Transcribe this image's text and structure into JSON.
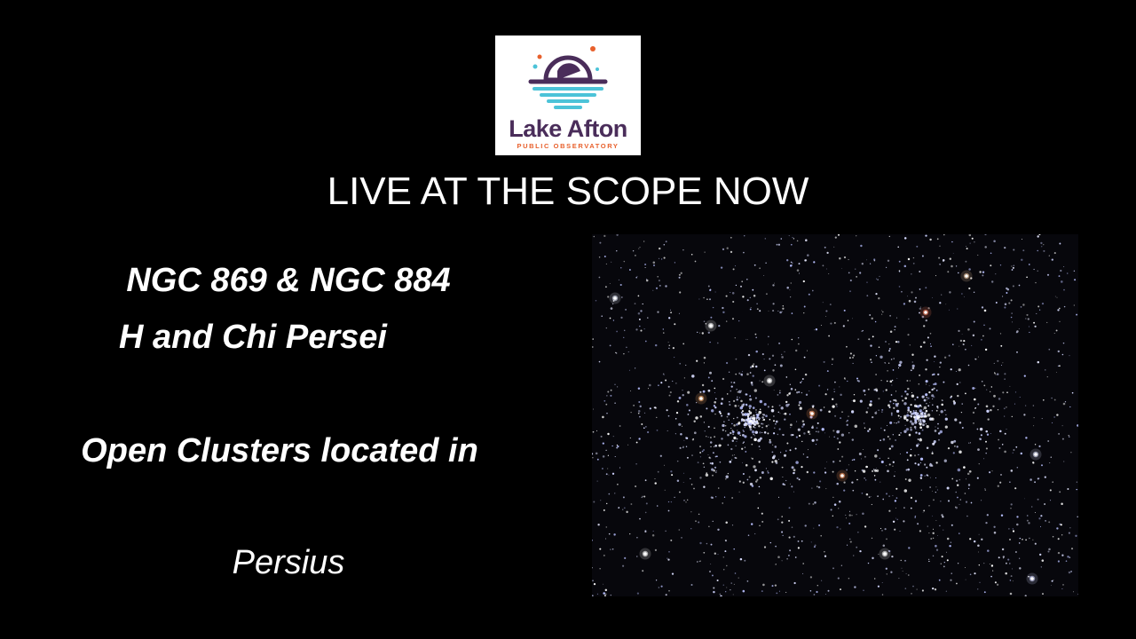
{
  "logo": {
    "name": "Lake Afton",
    "subtitle": "PUBLIC OBSERVATORY",
    "icon": "observatory-dome-over-water-icon",
    "colors": {
      "purple": "#4a2d5a",
      "teal": "#4cc3d8",
      "orange": "#e8602c",
      "white": "#ffffff"
    }
  },
  "headline": "LIVE AT THE SCOPE NOW",
  "target": {
    "line1": "NGC 869 & NGC 884",
    "line2": "H and Chi Persei",
    "line3": "Open Clusters located in",
    "line4": "Persius"
  },
  "image": {
    "subject": "double-cluster-star-field"
  }
}
